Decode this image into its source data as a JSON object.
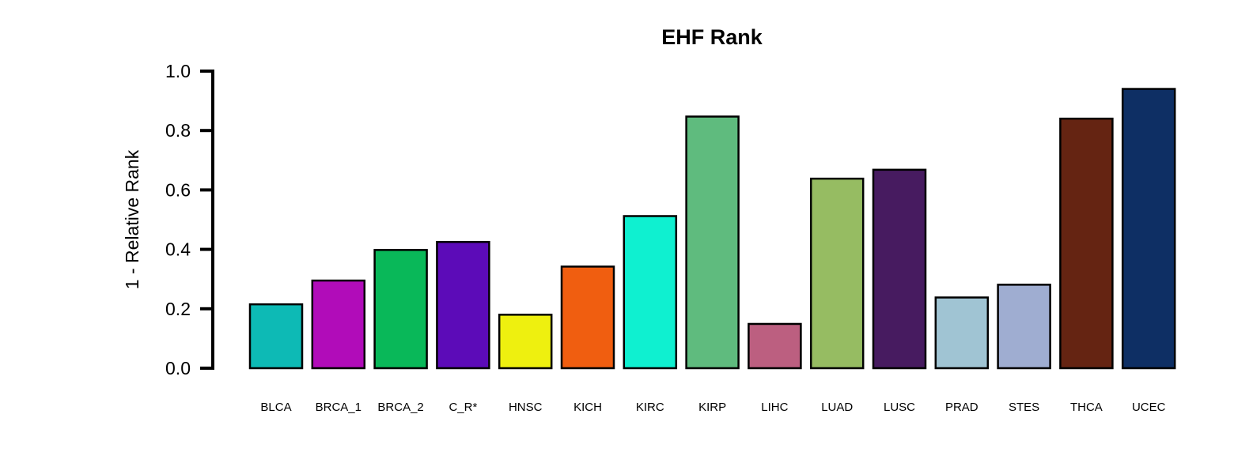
{
  "chart_data": {
    "type": "bar",
    "title": "EHF Rank",
    "ylabel": "1 - Relative Rank",
    "xlabel": "",
    "ylim": [
      0,
      1.0
    ],
    "yticks": [
      "0.0",
      "0.2",
      "0.4",
      "0.6",
      "0.8",
      "1.0"
    ],
    "ytick_values": [
      0,
      0.2,
      0.4,
      0.6,
      0.8,
      1.0
    ],
    "categories": [
      "BLCA",
      "BRCA_1",
      "BRCA_2",
      "C_R*",
      "HNSC",
      "KICH",
      "KIRC",
      "KIRP",
      "LIHC",
      "LUAD",
      "LUSC",
      "PRAD",
      "STES",
      "THCA",
      "UCEC"
    ],
    "values": [
      0.215,
      0.295,
      0.398,
      0.425,
      0.18,
      0.342,
      0.512,
      0.847,
      0.149,
      0.638,
      0.668,
      0.238,
      0.281,
      0.84,
      0.94
    ],
    "colors": [
      "#0dbab5",
      "#b10cb9",
      "#09b859",
      "#5c0bb8",
      "#eef00f",
      "#f05e10",
      "#0ff0d0",
      "#5fbb7e",
      "#bc5f80",
      "#96bc62",
      "#471b60",
      "#a0c4d3",
      "#9fadd1",
      "#652412",
      "#0e2f64"
    ],
    "grid": false,
    "legend": "none"
  }
}
